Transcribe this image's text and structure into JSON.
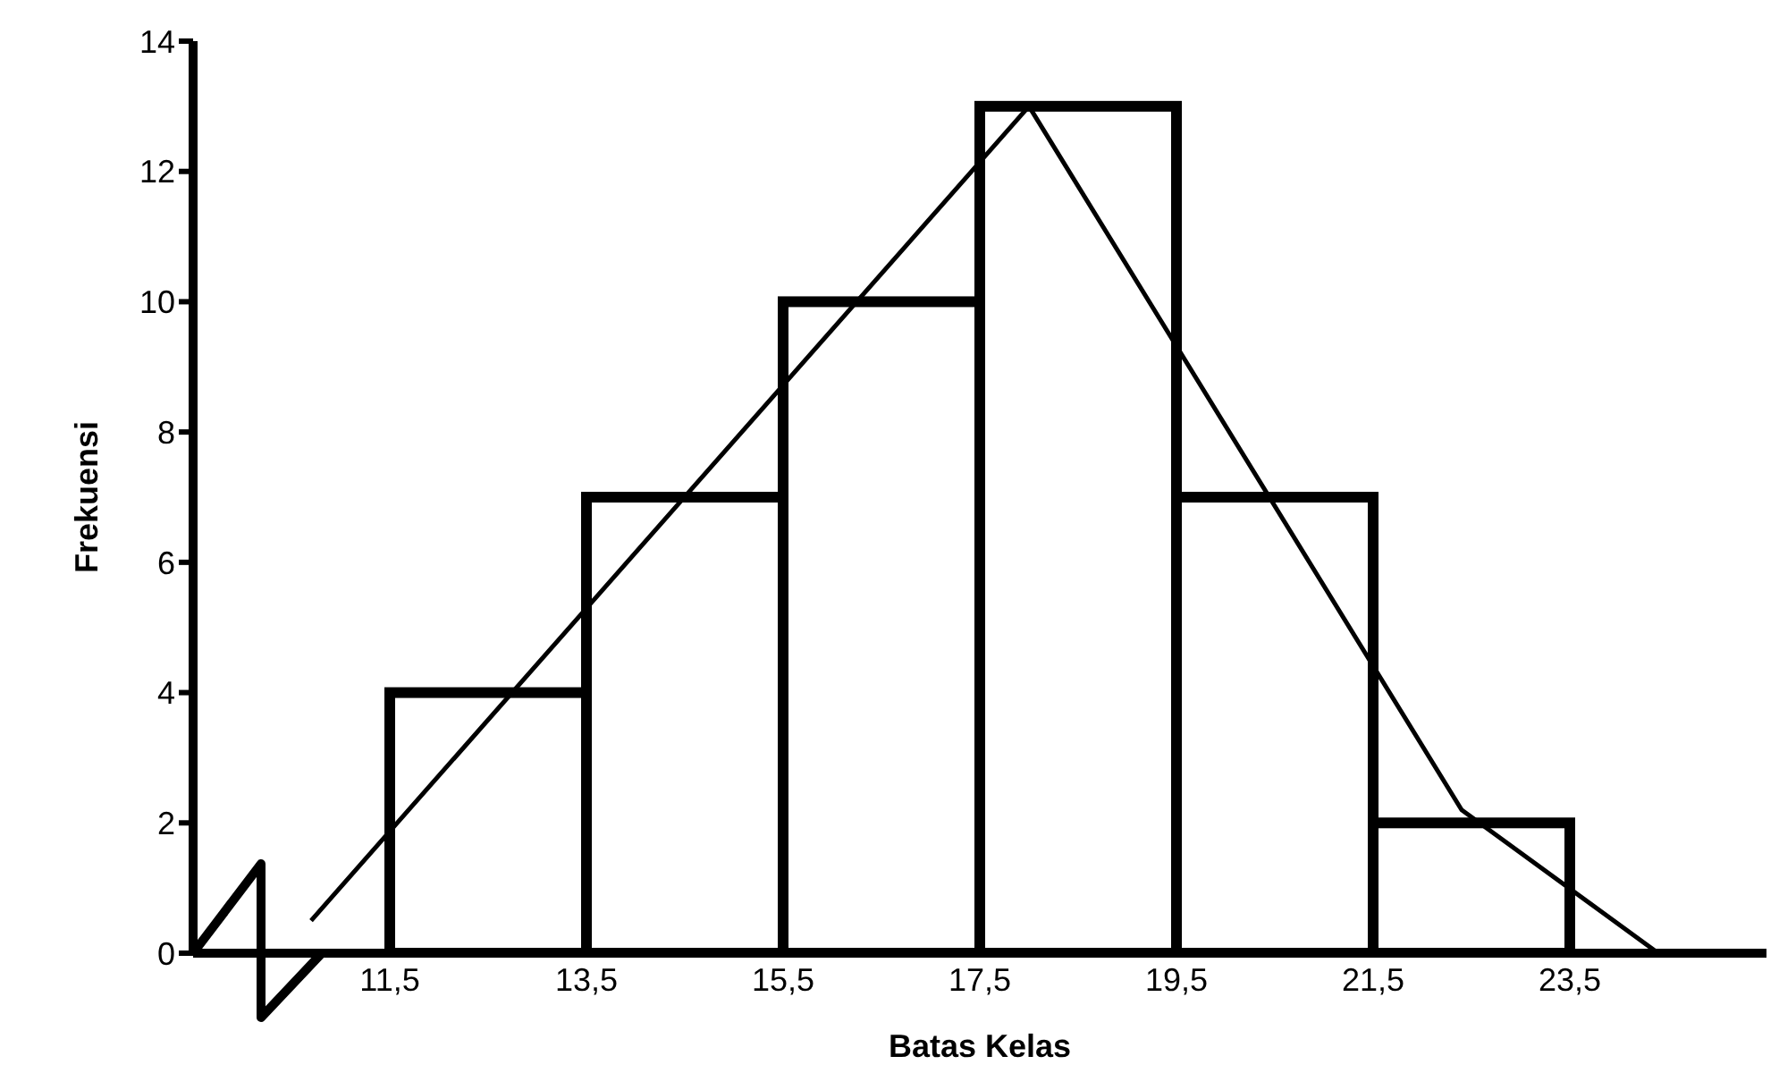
{
  "chart_data": {
    "type": "histogram",
    "xlabel": "Batas Kelas",
    "ylabel": "Frekuensi",
    "bins": [
      11.5,
      13.5,
      15.5,
      17.5,
      19.5,
      21.5,
      23.5
    ],
    "values": [
      4,
      7,
      10,
      13,
      7,
      2
    ],
    "color": "#000000",
    "series": [
      {
        "type": "line",
        "x": [
          10.7,
          18,
          22.4,
          24.4
        ],
        "values": [
          0.5,
          13,
          2.2,
          0
        ],
        "color": "#000000"
      }
    ],
    "xlim": [
      9.5,
      25.5
    ],
    "xticks": [
      {
        "value": 11.5,
        "label": "11,5"
      },
      {
        "value": 13.5,
        "label": "13,5"
      },
      {
        "value": 15.5,
        "label": "15,5"
      },
      {
        "value": 17.5,
        "label": "17,5"
      },
      {
        "value": 19.5,
        "label": "19,5"
      },
      {
        "value": 21.5,
        "label": "21,5"
      },
      {
        "value": 23.5,
        "label": "23,5"
      }
    ],
    "ylim": [
      0,
      14
    ],
    "yticks": [
      0,
      2,
      4,
      6,
      8,
      10,
      12,
      14
    ],
    "grid": false,
    "legend": false,
    "marker": "none",
    "line_style": "solid"
  }
}
